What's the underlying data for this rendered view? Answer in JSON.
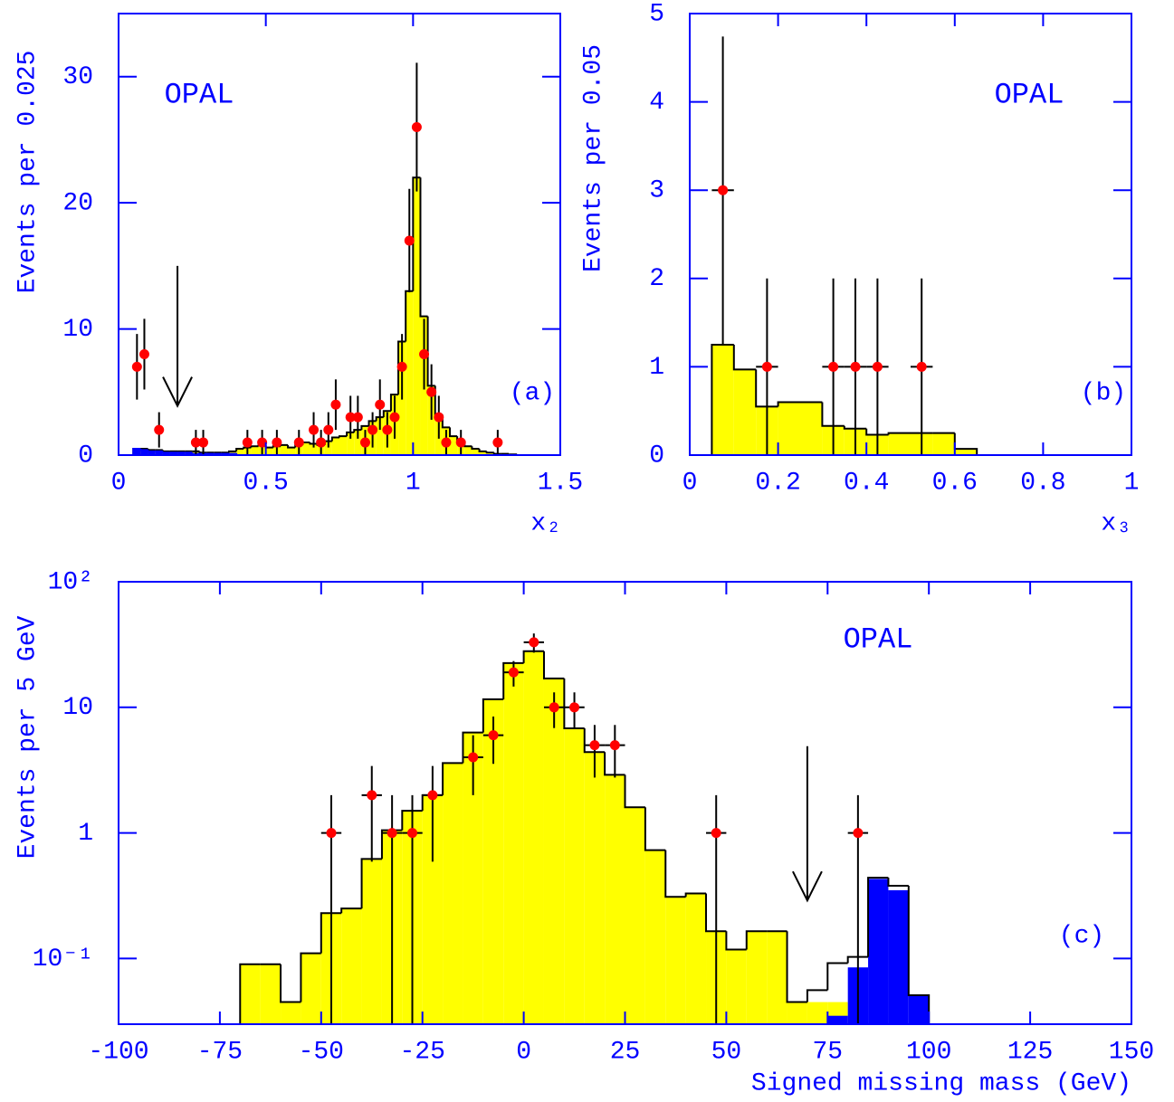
{
  "chart_data": [
    {
      "type": "histogram",
      "xlabel": "x₂",
      "ylabel": "Events per 0.025",
      "annotations": [
        "OPAL",
        "(a)"
      ],
      "xlim": [
        0,
        1.5
      ],
      "ylim": [
        0,
        35
      ],
      "xticks": [
        0,
        0.5,
        1,
        1.5
      ],
      "yticks": [
        0,
        10,
        20,
        30
      ],
      "log_y": false,
      "histograms": [
        {
          "bins": [
            0.05,
            0.075,
            0.1,
            0.125,
            0.15,
            0.175,
            0.2,
            0.225,
            0.25,
            0.275,
            0.3,
            0.325,
            0.35,
            0.375,
            0.4,
            0.425,
            0.45,
            0.475,
            0.5,
            0.525,
            0.55,
            0.575,
            0.6,
            0.625,
            0.65,
            0.675,
            0.7,
            0.725,
            0.75,
            0.775,
            0.8,
            0.825,
            0.85,
            0.875,
            0.9,
            0.925,
            0.95,
            0.975,
            1,
            1.025,
            1.05,
            1.075,
            1.1,
            1.125,
            1.15,
            1.175,
            1.2,
            1.225,
            1.25,
            1.275,
            1.3,
            1.325,
            1.35
          ],
          "values": [
            0.5,
            0.5,
            0.4,
            0.4,
            0.3,
            0.3,
            0.3,
            0.3,
            0.3,
            0.2,
            0.2,
            0.2,
            0.2,
            0.3,
            0.5,
            0.6,
            0.7,
            0.8,
            0.6,
            0.7,
            0.8,
            0.6,
            0.8,
            1.0,
            0.9,
            0.8,
            1.1,
            1.4,
            1.5,
            1.8,
            2.0,
            2.3,
            2.7,
            3.0,
            3.5,
            4.8,
            9,
            13,
            22,
            11,
            5.5,
            3.2,
            2.2,
            1.5,
            1.0,
            0.7,
            0.5,
            0.3,
            0.2,
            0.1,
            0.1,
            0.05
          ],
          "fill": "#ffff00",
          "stroke": "#000000"
        },
        {
          "bins": [
            0.05,
            0.075,
            0.1,
            0.125,
            0.15,
            0.175,
            0.2,
            0.225,
            0.25,
            0.275,
            0.3,
            0.325,
            0.35,
            0.375,
            0.4
          ],
          "values": [
            0.5,
            0.4,
            0.3,
            0.3,
            0.2,
            0.2,
            0.2,
            0.2,
            0.1,
            0.1,
            0.1,
            0.1,
            0.1,
            0.1
          ],
          "fill": "#0000ff",
          "stroke": "#0000ff"
        }
      ],
      "points": {
        "color": "#ff0000",
        "x": [
          0.0625,
          0.0875,
          0.1375,
          0.2625,
          0.2875,
          0.4375,
          0.4875,
          0.5375,
          0.6125,
          0.6625,
          0.6875,
          0.7125,
          0.7375,
          0.7875,
          0.8125,
          0.8375,
          0.8625,
          0.8875,
          0.9125,
          0.9375,
          0.9625,
          0.9875,
          1.0125,
          1.0375,
          1.0625,
          1.0875,
          1.1125,
          1.1625,
          1.2875
        ],
        "values": [
          7,
          8,
          2,
          1,
          1,
          1,
          1,
          1,
          1,
          2,
          1,
          2,
          4,
          3,
          3,
          1,
          2,
          4,
          2,
          3,
          7,
          17,
          26,
          8,
          5,
          3,
          1,
          1,
          1
        ],
        "yerr": [
          2.6,
          2.8,
          1.4,
          1,
          1,
          1,
          1,
          1,
          1,
          1.4,
          1,
          1.4,
          2,
          1.7,
          1.7,
          1,
          1.4,
          2,
          1.4,
          1.7,
          2.6,
          4.1,
          5.1,
          2.8,
          2.2,
          1.7,
          1,
          1,
          1
        ]
      },
      "arrow": {
        "x": 0.2,
        "y_top": 15,
        "y_tip": 3.9
      }
    },
    {
      "type": "histogram",
      "xlabel": "x₃",
      "ylabel": "Events per 0.05",
      "annotations": [
        "OPAL",
        "(b)"
      ],
      "xlim": [
        0,
        1
      ],
      "ylim": [
        0,
        5
      ],
      "xticks": [
        0,
        0.2,
        0.4,
        0.6,
        0.8,
        1
      ],
      "yticks": [
        0,
        1,
        2,
        3,
        4,
        5
      ],
      "log_y": false,
      "histograms": [
        {
          "bins": [
            0.05,
            0.1,
            0.15,
            0.2,
            0.25,
            0.3,
            0.35,
            0.4,
            0.45,
            0.5,
            0.55,
            0.6,
            0.65
          ],
          "values": [
            1.25,
            0.97,
            0.55,
            0.6,
            0.6,
            0.33,
            0.3,
            0.23,
            0.25,
            0.25,
            0.25,
            0.07
          ],
          "fill": "#ffff00",
          "stroke": "#000000"
        }
      ],
      "points": {
        "color": "#ff0000",
        "x": [
          0.075,
          0.175,
          0.325,
          0.375,
          0.425,
          0.525
        ],
        "values": [
          3,
          1,
          1,
          1,
          1,
          1
        ],
        "yerr": [
          1.74,
          1,
          1,
          1,
          1,
          1
        ],
        "xerr": [
          0.025,
          0.025,
          0.025,
          0.025,
          0.025,
          0.025
        ]
      }
    },
    {
      "type": "histogram",
      "xlabel": "Signed missing mass (GeV)",
      "ylabel": "Events per 5 GeV",
      "annotations": [
        "OPAL",
        "(c)"
      ],
      "xlim": [
        -100,
        150
      ],
      "ylim": [
        0.03,
        100
      ],
      "xticks": [
        -100,
        -75,
        -50,
        -25,
        0,
        25,
        50,
        75,
        100,
        125,
        150
      ],
      "yticks": [
        {
          "value": 0.1,
          "label": "10⁻¹"
        },
        1,
        10,
        {
          "value": 100,
          "label": "10²"
        }
      ],
      "log_y": true,
      "histograms": [
        {
          "bins": [
            -70,
            -65,
            -60,
            -55,
            -50,
            -45,
            -40,
            -35,
            -30,
            -25,
            -20,
            -15,
            -10,
            -5,
            0,
            5,
            10,
            15,
            20,
            25,
            30,
            35,
            40,
            45,
            50,
            55,
            60,
            65,
            70,
            75,
            80
          ],
          "values": [
            0.09,
            0.09,
            0.045,
            0.11,
            0.23,
            0.25,
            0.62,
            1.05,
            1.5,
            2.0,
            3.6,
            6.3,
            11.6,
            22.5,
            28,
            17,
            6.8,
            4.4,
            2.9,
            1.6,
            0.73,
            0.31,
            0.33,
            0.165,
            0.118,
            0.165,
            0.165,
            0.045,
            0.045,
            0.045
          ],
          "fill": "#ffff00"
        },
        {
          "bins": [
            75,
            80,
            85,
            90,
            95,
            100
          ],
          "values": [
            0.035,
            0.085,
            0.43,
            0.35,
            0.051
          ],
          "fill": "#0000ff"
        },
        {
          "bins": [
            -70,
            -65,
            -60,
            -55,
            -50,
            -45,
            -40,
            -35,
            -30,
            -25,
            -20,
            -15,
            -10,
            -5,
            0,
            5,
            10,
            15,
            20,
            25,
            30,
            35,
            40,
            45,
            50,
            55,
            60,
            65,
            70,
            75,
            80,
            85,
            90,
            95,
            100
          ],
          "values": [
            0.09,
            0.09,
            0.045,
            0.11,
            0.23,
            0.25,
            0.62,
            1.05,
            1.5,
            2.0,
            3.6,
            6.3,
            11.6,
            22.5,
            28,
            17,
            6.8,
            4.4,
            2.9,
            1.6,
            0.73,
            0.31,
            0.33,
            0.165,
            0.118,
            0.165,
            0.165,
            0.045,
            0.056,
            0.092,
            0.103,
            0.44,
            0.38,
            0.051
          ],
          "stroke": "#000000"
        }
      ],
      "points": {
        "color": "#ff0000",
        "x": [
          -47.5,
          -37.5,
          -32.5,
          -27.5,
          -22.5,
          -12.5,
          -7.5,
          -2.5,
          2.5,
          7.5,
          12.5,
          17.5,
          22.5,
          47.5,
          82.5
        ],
        "values": [
          1,
          2,
          1,
          1,
          2,
          4,
          6,
          19,
          33,
          10,
          10,
          5,
          5,
          1,
          1
        ],
        "yerr": [
          1,
          1.41,
          1,
          1,
          1.41,
          2,
          2.45,
          4.36,
          5.74,
          3.16,
          3.16,
          2.24,
          2.24,
          1,
          1
        ],
        "xerr": [
          2.5,
          2.5,
          2.5,
          2.5,
          2.5,
          2.5,
          2.5,
          2.5,
          2.5,
          2.5,
          2.5,
          2.5,
          2.5,
          2.5,
          2.5
        ]
      },
      "arrow": {
        "x": 70,
        "y_top": 4.9,
        "y_tip": 0.29
      }
    }
  ]
}
